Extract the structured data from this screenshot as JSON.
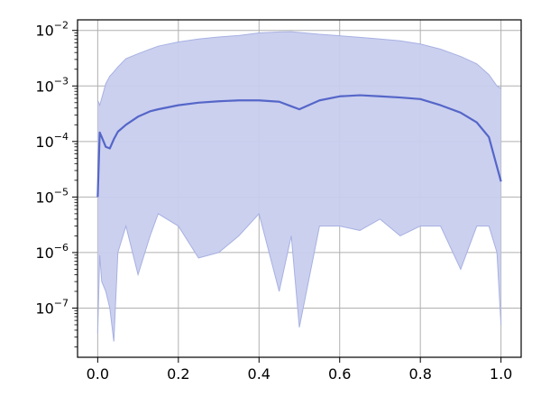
{
  "chart_data": {
    "type": "area",
    "title": "",
    "xlabel": "",
    "ylabel": "",
    "yscale": "log",
    "xlim": [
      -0.05,
      1.05
    ],
    "ylim": [
      1.3e-08,
      0.0155
    ],
    "grid": true,
    "x_ticks": [
      0.0,
      0.2,
      0.4,
      0.6,
      0.8,
      1.0
    ],
    "x_tick_labels": [
      "0.0",
      "0.2",
      "0.4",
      "0.6",
      "0.8",
      "1.0"
    ],
    "y_ticks": [
      1e-07,
      1e-06,
      1e-05,
      0.0001,
      0.001,
      0.01
    ],
    "y_tick_labels": [
      {
        "base": "10",
        "exp": "−7"
      },
      {
        "base": "10",
        "exp": "−6"
      },
      {
        "base": "10",
        "exp": "−5"
      },
      {
        "base": "10",
        "exp": "−4"
      },
      {
        "base": "10",
        "exp": "−3"
      },
      {
        "base": "10",
        "exp": "−2"
      }
    ],
    "colors": {
      "line": "#5566c8",
      "band_fill": "#c8cdee",
      "band_edge": "#a7b1e2",
      "grid": "#b0b0b0"
    },
    "x": [
      0.0,
      0.005,
      0.01,
      0.02,
      0.03,
      0.04,
      0.05,
      0.07,
      0.1,
      0.13,
      0.15,
      0.2,
      0.25,
      0.3,
      0.35,
      0.4,
      0.45,
      0.48,
      0.5,
      0.55,
      0.6,
      0.65,
      0.7,
      0.75,
      0.8,
      0.85,
      0.9,
      0.94,
      0.97,
      0.99,
      1.0
    ],
    "mean": [
      1e-05,
      0.000145,
      0.00012,
      8e-05,
      7.5e-05,
      0.00011,
      0.00015,
      0.0002,
      0.00028,
      0.00035,
      0.00038,
      0.00045,
      0.0005,
      0.00053,
      0.00055,
      0.00055,
      0.00052,
      0.00043,
      0.00038,
      0.00055,
      0.00065,
      0.00068,
      0.00065,
      0.00062,
      0.00058,
      0.00045,
      0.00033,
      0.00022,
      0.00012,
      3.5e-05,
      1.9e-05
    ],
    "upper": [
      0.00055,
      0.00045,
      0.0006,
      0.0011,
      0.0015,
      0.0018,
      0.0022,
      0.0031,
      0.0038,
      0.0046,
      0.0052,
      0.0062,
      0.007,
      0.0076,
      0.0081,
      0.009,
      0.0094,
      0.0095,
      0.0092,
      0.0085,
      0.008,
      0.0075,
      0.007,
      0.0065,
      0.0057,
      0.0046,
      0.0034,
      0.0025,
      0.0016,
      0.001,
      0.0009
    ],
    "lower": [
      3.5e-08,
      9e-07,
      3e-07,
      2e-07,
      1e-07,
      2.5e-08,
      1e-06,
      3e-06,
      4e-07,
      2e-06,
      5e-06,
      3e-06,
      8e-07,
      1e-06,
      2e-06,
      5e-06,
      2e-07,
      2e-06,
      4.5e-08,
      3e-06,
      3e-06,
      2.5e-06,
      4e-06,
      2e-06,
      3e-06,
      3e-06,
      5e-07,
      3e-06,
      3e-06,
      1e-06,
      5e-08
    ]
  }
}
